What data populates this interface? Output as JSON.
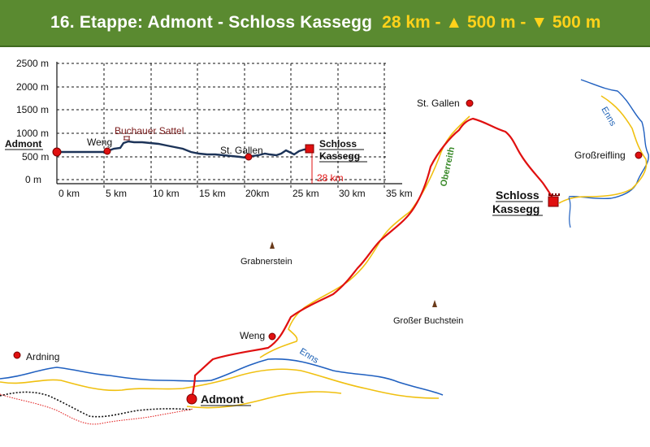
{
  "header": {
    "title": "16. Etappe: Admont - Schloss Kassegg",
    "stats": "28 km - ▲ 500 m - ▼ 500 m"
  },
  "profile": {
    "y_ticks": [
      "2500 m",
      "2000 m",
      "1500 m",
      "1000 m",
      "500 m",
      "0 m"
    ],
    "x_ticks": [
      "0 km",
      "5 km",
      "10 km",
      "15 km",
      "20km",
      "25 km",
      "30 km",
      "35 km"
    ],
    "start_label": "Admont",
    "weng_label": "Weng",
    "pass_label": "Buchauer Sattel",
    "gallen_label": "St. Gallen",
    "end_label_1": "Schloss",
    "end_label_2": "Kassegg",
    "distance_label": "28 km"
  },
  "map": {
    "places": {
      "st_gallen": "St. Gallen",
      "grossreifling": "Großreifling",
      "schloss_1": "Schloss",
      "schloss_2": "Kassegg",
      "weng": "Weng",
      "ardning": "Ardning",
      "admont": "Admont"
    },
    "peaks": {
      "grabnerstein": "Grabnerstein",
      "buchstein": "Großer Buchstein"
    },
    "water": {
      "enns_north": "Enns",
      "enns_south": "Enns",
      "oberreith": "Oberreith"
    }
  },
  "colors": {
    "header_bg": "#5a8a30",
    "header_accent": "#ffd21a",
    "route": "#e01010",
    "road": "#f0c010",
    "river": "#2060c0",
    "profile_line": "#1c3358"
  }
}
